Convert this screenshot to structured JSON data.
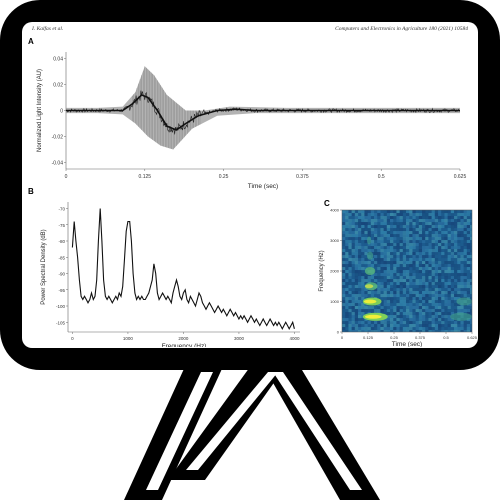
{
  "header": {
    "authors": "I. Kalfas et al.",
    "journal": "Computers and Electronics in Agriculture 180 (2021) 10584"
  },
  "colors": {
    "frame": "#000000",
    "screen": "#ffffff",
    "signal_dark": "#222222",
    "signal_envelope": "#8a8a8a",
    "spectrogram_bg": "#1f5f93",
    "spectrogram_hot": "#f2ee3a"
  },
  "panels": {
    "a_label": "A",
    "b_label": "B",
    "c_label": "C"
  },
  "chart_data": [
    {
      "id": "A",
      "type": "line",
      "title": "",
      "xlabel": "Time (sec)",
      "ylabel": "Normalized Light Intensity (AU)",
      "xlim": [
        0,
        0.625
      ],
      "ylim": [
        -0.045,
        0.045
      ],
      "xticks": [
        "0",
        "0.125",
        "0.25",
        "0.375",
        "0.5",
        "0.625"
      ],
      "yticks": [
        "0.04",
        "0.02",
        "0",
        "-0.02",
        "-0.04"
      ],
      "grid": false,
      "envelope_max": [
        [
          0,
          0.002
        ],
        [
          0.05,
          0.002
        ],
        [
          0.09,
          0.003
        ],
        [
          0.11,
          0.014
        ],
        [
          0.125,
          0.034
        ],
        [
          0.14,
          0.027
        ],
        [
          0.16,
          0.012
        ],
        [
          0.19,
          0.0
        ],
        [
          0.22,
          0.0
        ],
        [
          0.26,
          0.003
        ],
        [
          0.35,
          0.002
        ],
        [
          0.625,
          0.002
        ]
      ],
      "envelope_min": [
        [
          0,
          -0.002
        ],
        [
          0.05,
          -0.002
        ],
        [
          0.09,
          -0.003
        ],
        [
          0.11,
          -0.01
        ],
        [
          0.13,
          -0.02
        ],
        [
          0.15,
          -0.027
        ],
        [
          0.17,
          -0.03
        ],
        [
          0.2,
          -0.014
        ],
        [
          0.24,
          -0.004
        ],
        [
          0.3,
          -0.002
        ],
        [
          0.625,
          -0.002
        ]
      ],
      "mean": [
        [
          0,
          0
        ],
        [
          0.09,
          0.0
        ],
        [
          0.105,
          0.005
        ],
        [
          0.12,
          0.012
        ],
        [
          0.13,
          0.01
        ],
        [
          0.145,
          0.0
        ],
        [
          0.16,
          -0.012
        ],
        [
          0.175,
          -0.015
        ],
        [
          0.19,
          -0.01
        ],
        [
          0.21,
          -0.004
        ],
        [
          0.24,
          0.0
        ],
        [
          0.27,
          0.001
        ],
        [
          0.3,
          0.0
        ],
        [
          0.625,
          0.0
        ]
      ]
    },
    {
      "id": "B",
      "type": "line",
      "title": "",
      "xlabel": "Frequency (Hz)",
      "ylabel": "Power Spectral Density (dB)",
      "xlim": [
        -80,
        4100
      ],
      "ylim": [
        -108,
        -68
      ],
      "xticks": [
        "0",
        "1000",
        "2000",
        "3000",
        "4000"
      ],
      "yticks": [
        "-70",
        "-75",
        "-80",
        "-85",
        "-90",
        "-95",
        "-100",
        "-105"
      ],
      "grid": false,
      "points": [
        [
          0,
          -82
        ],
        [
          31,
          -74
        ],
        [
          62,
          -80
        ],
        [
          93,
          -85
        ],
        [
          125,
          -92
        ],
        [
          156,
          -97
        ],
        [
          187,
          -98
        ],
        [
          218,
          -97
        ],
        [
          250,
          -98
        ],
        [
          281,
          -99
        ],
        [
          312,
          -98
        ],
        [
          343,
          -96
        ],
        [
          375,
          -98
        ],
        [
          406,
          -97
        ],
        [
          437,
          -92
        ],
        [
          468,
          -80
        ],
        [
          500,
          -70
        ],
        [
          531,
          -80
        ],
        [
          562,
          -92
        ],
        [
          593,
          -97
        ],
        [
          625,
          -98
        ],
        [
          656,
          -97
        ],
        [
          687,
          -98
        ],
        [
          718,
          -99
        ],
        [
          750,
          -98
        ],
        [
          781,
          -97
        ],
        [
          812,
          -98
        ],
        [
          843,
          -96
        ],
        [
          875,
          -97
        ],
        [
          906,
          -94
        ],
        [
          937,
          -86
        ],
        [
          968,
          -77
        ],
        [
          1000,
          -74
        ],
        [
          1031,
          -74
        ],
        [
          1062,
          -80
        ],
        [
          1093,
          -90
        ],
        [
          1125,
          -96
        ],
        [
          1156,
          -98
        ],
        [
          1187,
          -97
        ],
        [
          1218,
          -98
        ],
        [
          1250,
          -97
        ],
        [
          1281,
          -98
        ],
        [
          1312,
          -98
        ],
        [
          1343,
          -97
        ],
        [
          1375,
          -96
        ],
        [
          1406,
          -94
        ],
        [
          1437,
          -92
        ],
        [
          1468,
          -87
        ],
        [
          1500,
          -90
        ],
        [
          1531,
          -96
        ],
        [
          1562,
          -98
        ],
        [
          1593,
          -97
        ],
        [
          1625,
          -96
        ],
        [
          1656,
          -97
        ],
        [
          1687,
          -98
        ],
        [
          1718,
          -97
        ],
        [
          1750,
          -98
        ],
        [
          1781,
          -99
        ],
        [
          1812,
          -96
        ],
        [
          1843,
          -94
        ],
        [
          1875,
          -92
        ],
        [
          1906,
          -94
        ],
        [
          1937,
          -97
        ],
        [
          1968,
          -98
        ],
        [
          2000,
          -96
        ],
        [
          2031,
          -95
        ],
        [
          2062,
          -98
        ],
        [
          2093,
          -99
        ],
        [
          2125,
          -97
        ],
        [
          2156,
          -98
        ],
        [
          2187,
          -99
        ],
        [
          2218,
          -100
        ],
        [
          2250,
          -98
        ],
        [
          2281,
          -96
        ],
        [
          2312,
          -97
        ],
        [
          2343,
          -99
        ],
        [
          2375,
          -100
        ],
        [
          2406,
          -101
        ],
        [
          2437,
          -100
        ],
        [
          2468,
          -99
        ],
        [
          2500,
          -100
        ],
        [
          2531,
          -101
        ],
        [
          2562,
          -102
        ],
        [
          2593,
          -101
        ],
        [
          2625,
          -100
        ],
        [
          2656,
          -101
        ],
        [
          2687,
          -102
        ],
        [
          2718,
          -101
        ],
        [
          2750,
          -102
        ],
        [
          2781,
          -103
        ],
        [
          2812,
          -102
        ],
        [
          2843,
          -101
        ],
        [
          2875,
          -102
        ],
        [
          2906,
          -103
        ],
        [
          2937,
          -102
        ],
        [
          2968,
          -103
        ],
        [
          3000,
          -104
        ],
        [
          3031,
          -103
        ],
        [
          3062,
          -104
        ],
        [
          3093,
          -103
        ],
        [
          3125,
          -104
        ],
        [
          3156,
          -105
        ],
        [
          3187,
          -104
        ],
        [
          3218,
          -103
        ],
        [
          3250,
          -104
        ],
        [
          3281,
          -105
        ],
        [
          3312,
          -104
        ],
        [
          3343,
          -105
        ],
        [
          3375,
          -106
        ],
        [
          3406,
          -105
        ],
        [
          3437,
          -104
        ],
        [
          3468,
          -105
        ],
        [
          3500,
          -106
        ],
        [
          3531,
          -105
        ],
        [
          3562,
          -104
        ],
        [
          3593,
          -105
        ],
        [
          3625,
          -106
        ],
        [
          3656,
          -105
        ],
        [
          3687,
          -106
        ],
        [
          3718,
          -105
        ],
        [
          3750,
          -106
        ],
        [
          3781,
          -107
        ],
        [
          3812,
          -106
        ],
        [
          3843,
          -105
        ],
        [
          3875,
          -106
        ],
        [
          3906,
          -107
        ],
        [
          3937,
          -106
        ],
        [
          3968,
          -105
        ],
        [
          4000,
          -107
        ]
      ]
    },
    {
      "id": "C",
      "type": "heatmap",
      "title": "",
      "xlabel": "Time (sec)",
      "ylabel": "Frequency (Hz)",
      "xlim": [
        0,
        0.625
      ],
      "ylim": [
        0,
        4000
      ],
      "xticks": [
        "0",
        "0.125",
        "0.25",
        "0.375",
        "0.5",
        "0.625"
      ],
      "yticks": [
        "4000",
        "3000",
        "2000",
        "1000",
        "0"
      ],
      "bands": [
        {
          "freq": 500,
          "t0": 0.1,
          "t1": 0.22,
          "intensity": 1.0
        },
        {
          "freq": 1000,
          "t0": 0.1,
          "t1": 0.19,
          "intensity": 0.95
        },
        {
          "freq": 1500,
          "t0": 0.11,
          "t1": 0.17,
          "intensity": 0.65
        },
        {
          "freq": 2000,
          "t0": 0.11,
          "t1": 0.16,
          "intensity": 0.5
        },
        {
          "freq": 2500,
          "t0": 0.12,
          "t1": 0.15,
          "intensity": 0.35
        },
        {
          "freq": 3000,
          "t0": 0.12,
          "t1": 0.14,
          "intensity": 0.2
        },
        {
          "freq": 1000,
          "t0": 0.55,
          "t1": 0.625,
          "intensity": 0.35
        },
        {
          "freq": 500,
          "t0": 0.52,
          "t1": 0.625,
          "intensity": 0.3
        }
      ]
    }
  ]
}
